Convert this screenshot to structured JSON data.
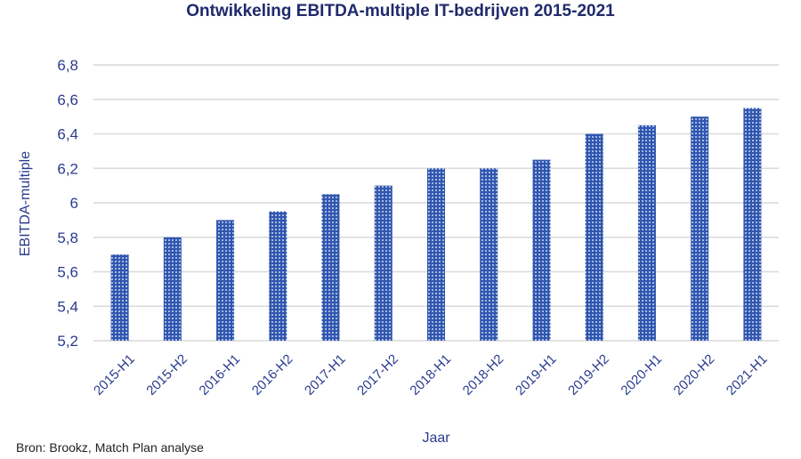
{
  "chart_data": {
    "type": "bar",
    "title": "Ontwikkeling EBITDA-multiple IT-bedrijven  2015-2021",
    "xlabel": "Jaar",
    "ylabel": "EBITDA-multiple",
    "categories": [
      "2015-H1",
      "2015-H2",
      "2016-H1",
      "2016-H2",
      "2017-H1",
      "2017-H2",
      "2018-H1",
      "2018-H2",
      "2019-H1",
      "2019-H2",
      "2020-H1",
      "2020-H2",
      "2021-H1"
    ],
    "values": [
      5.7,
      5.8,
      5.9,
      5.95,
      6.05,
      6.1,
      6.2,
      6.2,
      6.25,
      6.4,
      6.45,
      6.5,
      6.55
    ],
    "ylim": [
      5.2,
      6.8
    ],
    "yticks": [
      "5,2",
      "5,4",
      "5,6",
      "5,8",
      "6",
      "6,2",
      "6,4",
      "6,6",
      "6,8"
    ],
    "grid": true,
    "bar_color": "#2f56b0"
  },
  "source": "Bron: Brookz, Match Plan analyse"
}
